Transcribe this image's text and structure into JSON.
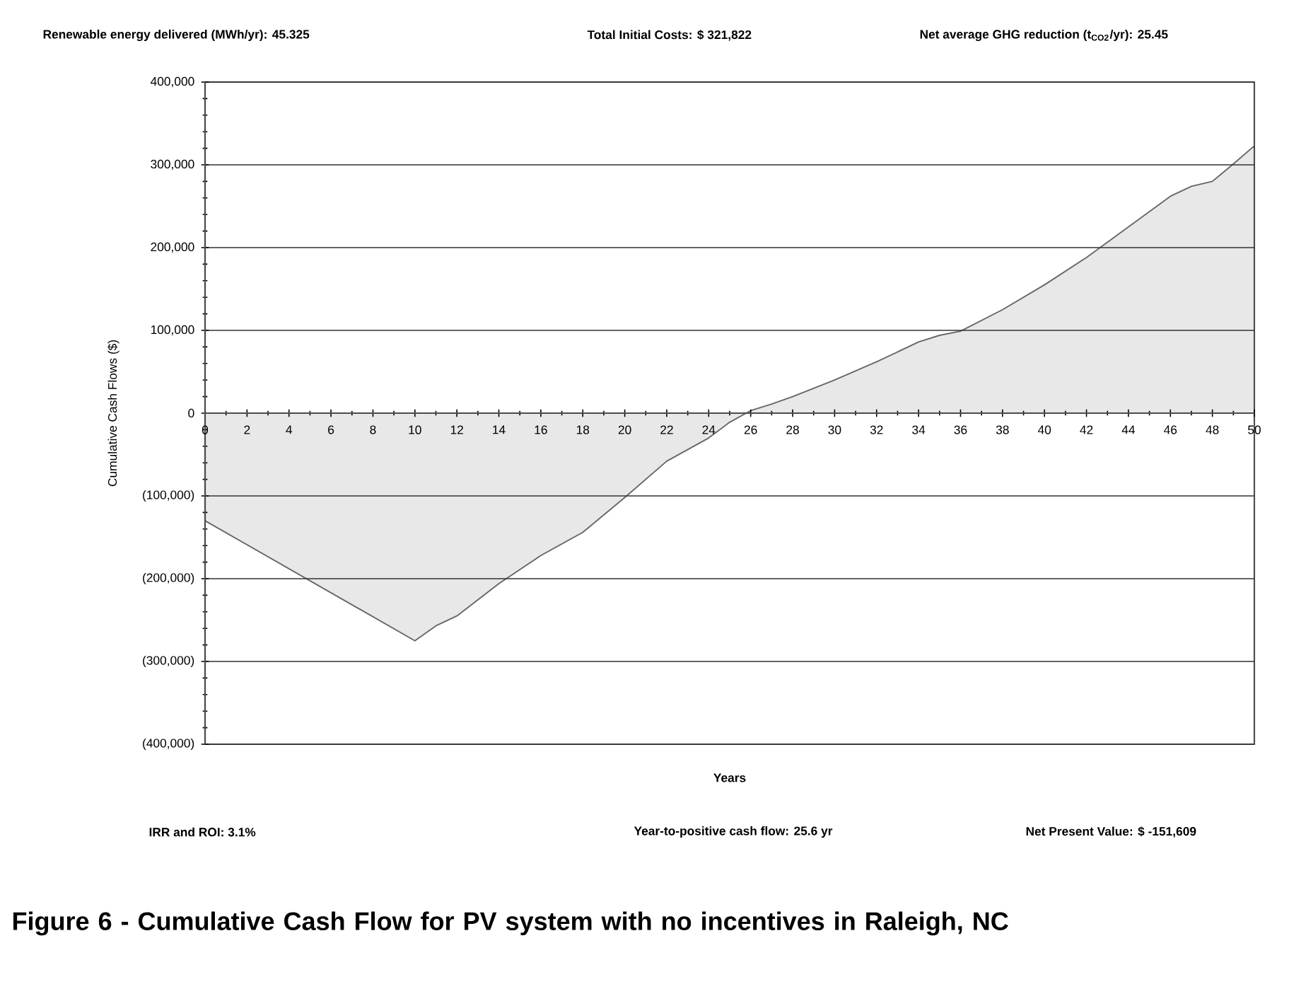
{
  "chart_data": {
    "type": "area",
    "title": "Figure 6 - Cumulative Cash Flow for PV system with no incentives in Raleigh, NC",
    "xlabel": "Years",
    "ylabel": "Cumulative Cash Flows ($)",
    "annotations": [
      "Renewable energy delivered (MWh/yr): 45.325",
      "Total Initial Costs:      $      321,822",
      "Net average GHG reduction (t$_{CO2}$/yr): 25.45",
      "IRR and ROI:  3.1%",
      "Year-to-positive cash flow: 25.6 yr",
      "Net Present Value:  $  -151,609"
    ],
    "x": [
      0,
      10,
      11,
      12,
      14,
      16,
      18,
      20,
      22,
      24,
      25,
      26,
      27,
      28,
      30,
      32,
      34,
      35,
      36,
      38,
      40,
      42,
      44,
      46,
      47,
      48,
      49,
      50
    ],
    "series": [
      {
        "color": "#e8e8e8",
        "values": [
          -130000,
          -275000,
          -257000,
          -245000,
          -206000,
          -172000,
          -144000,
          -102000,
          -58000,
          -30000,
          -11000,
          3000,
          11000,
          20000,
          40000,
          62000,
          86000,
          94000,
          99000,
          125000,
          155000,
          188000,
          225000,
          262000,
          274000,
          280000,
          301000,
          323000
        ]
      }
    ],
    "xlim": [
      0,
      50
    ],
    "xticks": [
      0,
      2,
      4,
      6,
      8,
      10,
      12,
      14,
      16,
      18,
      20,
      22,
      24,
      26,
      28,
      30,
      32,
      34,
      36,
      38,
      40,
      42,
      44,
      46,
      48,
      50
    ],
    "ylim": [
      -400000,
      400000
    ],
    "yticks": [
      {
        "value": -400000,
        "label": "(400,000)"
      },
      {
        "value": -300000,
        "label": "(300,000)"
      },
      {
        "value": -200000,
        "label": "(200,000)"
      },
      {
        "value": -100000,
        "label": "(100,000)"
      },
      0,
      {
        "value": 100000,
        "label": "100,000"
      },
      {
        "value": 200000,
        "label": "200,000"
      },
      {
        "value": 300000,
        "label": "300,000"
      },
      {
        "value": 400000,
        "label": "400,000"
      }
    ],
    "grid": "y"
  }
}
